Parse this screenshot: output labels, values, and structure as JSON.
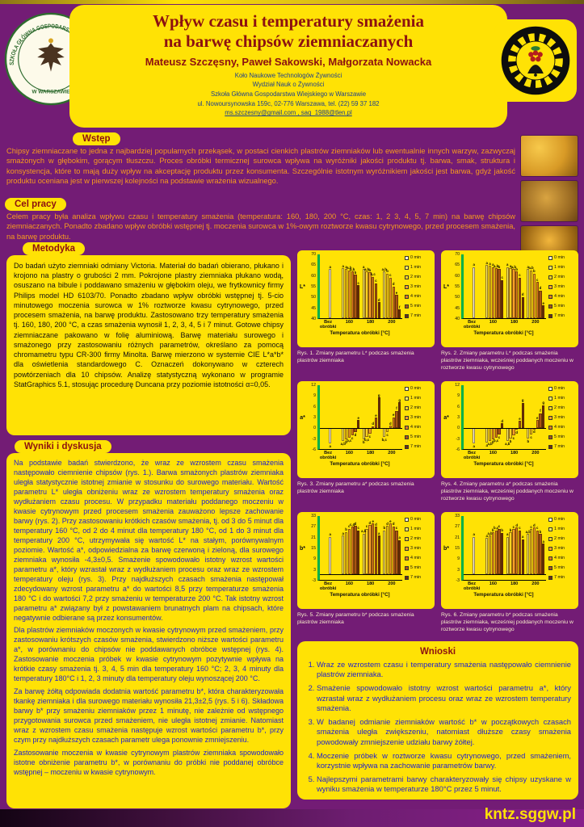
{
  "palette": {
    "background_purple": "#731c75",
    "panel_yellow": "#ffe205",
    "heading_dark_red": "#8c1111",
    "intro_text_orange": "#f79b1e",
    "results_text_blue": "#2222cc",
    "affiliation_blue": "#1c3f8f",
    "axis_green": "#00b14a"
  },
  "header": {
    "title_line1": "Wpływ czasu i temperatury smażenia",
    "title_line2": "na barwę chipsów ziemniaczanych",
    "authors": "Mateusz Szczęsny, Paweł Sakowski, Małgorzata Nowacka",
    "affiliation_lines": [
      "Koło Naukowe Technologów Żywności",
      "Wydział Nauk o Żywności",
      "Szkoła Główna Gospodarstwa Wiejskiego w Warszawie",
      "ul. Nowoursynowska 159c, 02-776 Warszawa,  tel. (22) 59 37 182"
    ],
    "emails": "ms.szczesny@gmail.com , saq_1988@tlen.pl",
    "seal_ring_text": "SZKOŁA GŁÓWNA GOSPODARSTWA WIEJSKIEGO",
    "seal_bottom_text": "W WARSZAWIE"
  },
  "sections": {
    "wstep": {
      "heading": "Wstęp",
      "body": "Chipsy ziemniaczane to jedna z najbardziej popularnych przekąsek, w postaci cienkich plastrów ziemniaków lub ewentualnie innych warzyw, zazwyczaj smażonych w głębokim, gorącym tłuszczu. Proces obróbki termicznej surowca wpływa na wyróżniki jakości produktu tj. barwa, smak, struktura i konsystencja, które to mają duży wpływ na akceptację produktu przez konsumenta. Szczególnie istotnym wyróżnikiem jakości jest barwa, gdyż jakość produktu oceniana jest w pierwszej kolejności na podstawie wrażenia wizualnego."
    },
    "cel": {
      "heading": "Cel pracy",
      "body": "Celem pracy była analiza wpływu czasu i temperatury smażenia (temperatura: 160, 180, 200 °C, czas: 1, 2 3, 4, 5, 7 min) na barwę chipsów ziemniaczanych. Ponadto zbadano wpływ obróbki wstępnej tj. moczenia surowca w 1%-owym roztworze kwasu cytrynowego, przed procesem smażenia, na barwę produktu."
    },
    "metodyka": {
      "heading": "Metodyka",
      "body": "Do badań użyto ziemniaki odmiany Victoria. Materiał do badań obierano, płukano i krojono na plastry o grubości 2 mm. Pokrojone plastry ziemniaka płukano wodą, osuszano na bibule i poddawano smażeniu w głębokim oleju, we frytkownicy firmy Philips model HD 6103/70. Ponadto zbadano wpływ obróbki wstępnej tj. 5-cio minutowego moczenia surowca w 1% roztworze kwasu cytrynowego, przed procesem smażenia, na barwę produktu. Zastosowano trzy temperatury smażenia tj. 160, 180, 200 °C, a czas smażenia wynosił 1, 2, 3, 4, 5 i 7 minut. Gotowe chipsy ziemniaczane pakowano w folię aluminiową. Barwę materiału surowego i smażonego przy zastosowaniu różnych parametrów, określano za pomocą chromametru typu CR-300 firmy Minolta. Barwę mierzono w systemie CIE L*a*b* dla oświetlenia standardowego C. Oznaczeń dokonywano w czterech powtórzeniach dla 10 chipsów. Analizę statystyczną wykonano w programie StatGraphics 5.1, stosując procedurę Duncana przy poziomie istotności α=0,05."
    },
    "wyniki": {
      "heading": "Wyniki i dyskusja",
      "paragraphs": [
        "Na podstawie badań stwierdzono, że wraz ze wzrostem czasu smażenia następowało ciemnienie chipsów (rys. 1.). Barwa smażonych plastrów ziemniaka uległa statystycznie istotnej zmianie w stosunku do surowego materiału. Wartość parametru L* uległa obniżeniu wraz ze wzrostem temperatury smażenia oraz wydłużaniem czasu procesu. W przypadku materiału poddanego moczeniu w kwasie cytrynowym przed procesem smażenia zauważono lepsze zachowanie barwy (rys. 2). Przy zastosowaniu krótkich czasów smażenia, tj. od 3 do 5 minut dla temperatury 160 °C, od 2 do 4 minut dla temperatury 180 °C, od 1 do 3 minut dla temperatury 200 °C, utrzymywała się wartość L* na stałym, porównywalnym poziomie. Wartość a*, odpowiedzialna za barwę czerwoną i zieloną, dla surowego ziemniaka wynosiła -4,3±0,5. Smażenie spowodowało istotny wzrost wartości parametru a*, który wzrastał wraz z wydłużaniem procesu oraz wraz ze wzrostem temperatury oleju (rys. 3). Przy najdłuższych czasach smażenia następował zdecydowany wzrost parametru a* do wartości 8,5 przy temperaturze smażenia 180 °C i do wartości 7,2 przy smażeniu w temperaturze 200 °C. Tak istotny wzrost parametru a* związany był z powstawaniem brunatnych plam na chipsach, które negatywnie odbierane są przez konsumentów.",
        "Dla plastrów ziemniaków moczonych w kwasie cytrynowym przed smażeniem, przy zastosowaniu krótszych czasów smażenia, stwierdzono niższe wartości parametru a*, w porównaniu do chipsów nie poddawanych obróbce wstępnej (rys. 4). Zastosowanie moczenia próbek w kwasie cytrynowym pozytywnie wpływa na krótkie czasy smażenia tj. 3, 4, 5 min dla temperatury 160 °C; 2, 3, 4 minuty dla temperatury 180°C i 1, 2, 3 minuty dla temperatury oleju wynoszącej 200 °C.",
        "Za barwę żółtą odpowiada dodatnia wartość parametru b*, która charakteryzowała tkankę ziemniaka i dla surowego materiału wynosiła 21,3±2,5 (rys. 5 i 6). Składowa barwy b* przy smażeniu ziemniaków przez 1 minutę, nie zależnie od wstępnego przygotowania surowca przed smażeniem, nie uległa istotnej zmianie. Natomiast wraz z wzrostem czasu smażenia następuje wzrost wartości parametru b*, przy czym przy najdłuższych czasach parametr ulega ponownie zmniejszeniu.",
        "Zastosowanie moczenia w kwasie cytrynowym plastrów ziemniaka spowodowało istotne obniżenie parametru b*, w porównaniu do próbki nie poddanej obróbce wstępnej – moczeniu w kwasie cytrynowym."
      ]
    },
    "wnioski": {
      "heading": "Wnioski",
      "items": [
        "Wraz ze wzrostem czasu i temperatury smażenia następowało ciemnienie plastrów ziemniaka.",
        "Smażenie spowodowało istotny wzrost wartości parametru a*, który wzrastał wraz z wydłużaniem procesu oraz wraz ze wzrostem temperatury smażenia.",
        "W badanej odmianie ziemniaków wartość b* w początkowych czasach smażenia uległa zwiększeniu, natomiast dłuższe czasy smażenia powodowały zmniejszenie udziału barwy żółtej.",
        "Moczenie próbek w roztworze kwasu cytrynowego, przed smażeniem, korzystnie wpływa na zachowanie parametrów barwy.",
        "Najlepszymi parametrami barwy charakteryzowały się chipsy uzyskane w wyniku smażenia w temperaturze 180°C przez 5 minut."
      ]
    }
  },
  "footer": {
    "site": "kntz.sggw.pl"
  },
  "chart_common": {
    "raw_label": "Bez obróbki",
    "legend": [
      "0 min",
      "1 min",
      "2 min",
      "3 min",
      "4 min",
      "5 min",
      "7 min"
    ],
    "colors": [
      "#fffdd8",
      "#fff066",
      "#ffd321",
      "#f7a128",
      "#dd7d1f",
      "#a85513",
      "#6f3008"
    ]
  },
  "chart_data": [
    {
      "type": "bar",
      "caption": "Rys. 1. Zmiany parametru L* podczas smażenia plastrów ziemniaka",
      "ylabel": "L*",
      "xlabel": "Temperatura obróbki [°C]",
      "ylim": [
        40,
        70
      ],
      "yticks": [
        40,
        45,
        50,
        55,
        60,
        65,
        70
      ],
      "raw": {
        "value": 63,
        "letter": "a"
      },
      "groups": [
        {
          "label": "160",
          "values": [
            63.5,
            63,
            62.5,
            62,
            60.5,
            55.5
          ],
          "letters": [
            "a",
            "a",
            "a,b",
            "a,b",
            "b",
            "c"
          ]
        },
        {
          "label": "180",
          "values": [
            63,
            62,
            61.5,
            59.5,
            56.5,
            47.5
          ],
          "letters": [
            "a",
            "a,b",
            "b",
            "b,c",
            "c",
            "d"
          ]
        },
        {
          "label": "200",
          "values": [
            62,
            61,
            59,
            55,
            51,
            44
          ],
          "letters": [
            "a,b",
            "b",
            "c",
            "d",
            "e",
            "f"
          ]
        }
      ]
    },
    {
      "type": "bar",
      "caption": "Rys. 2. Zmiany parametru L* podczas smażenia plastrów ziemniaka, wcześniej poddanych moczeniu w roztworze kwasu cytrynowego",
      "ylabel": "L*",
      "xlabel": "Temperatura obróbki [°C]",
      "ylim": [
        40,
        70
      ],
      "yticks": [
        40,
        45,
        50,
        55,
        60,
        65,
        70
      ],
      "raw": {
        "value": 64,
        "letter": "a"
      },
      "groups": [
        {
          "label": "160",
          "values": [
            65,
            64.5,
            64,
            63.5,
            63,
            58
          ],
          "letters": [
            "a",
            "a",
            "a",
            "a,b",
            "b",
            "c"
          ]
        },
        {
          "label": "180",
          "values": [
            64,
            63.5,
            63,
            62,
            59,
            50
          ],
          "letters": [
            "a",
            "a",
            "a,b",
            "b",
            "c",
            "d"
          ]
        },
        {
          "label": "200",
          "values": [
            63,
            62.5,
            61,
            57,
            53,
            46
          ],
          "letters": [
            "a",
            "a,b",
            "b",
            "c",
            "d",
            "e"
          ]
        }
      ]
    },
    {
      "type": "bar",
      "caption": "Rys. 3. Zmiany parametru a* podczas smażenia plastrów ziemniaka",
      "ylabel": "a*",
      "xlabel": "Temperatura obróbki [°C]",
      "ylim": [
        -6,
        12
      ],
      "yticks": [
        -6,
        -3,
        0,
        3,
        6,
        9,
        12
      ],
      "raw": {
        "value": -4.3,
        "letter": "a"
      },
      "groups": [
        {
          "label": "160",
          "values": [
            -3.8,
            -3.2,
            -2.8,
            -2.2,
            -1.2,
            2.1
          ],
          "letters": [
            "a,b",
            "b",
            "b,c",
            "c",
            "d",
            "e"
          ]
        },
        {
          "label": "180",
          "values": [
            -3.2,
            -2.6,
            -1.6,
            0.4,
            2.8,
            8.5
          ],
          "letters": [
            "b",
            "b,c",
            "c",
            "d",
            "e",
            "g"
          ]
        },
        {
          "label": "200",
          "values": [
            -2.6,
            -1.2,
            0.6,
            2.9,
            4.8,
            7.2
          ],
          "letters": [
            "b,c",
            "c",
            "d",
            "e",
            "f",
            "g"
          ]
        }
      ]
    },
    {
      "type": "bar",
      "caption": "Rys. 4. Zmiany parametru a* podczas smażenia plastrów ziemniaka, wcześniej poddanych moczeniu w roztworze kwasu cytrynowego",
      "ylabel": "a*",
      "xlabel": "Temperatura obróbki [°C]",
      "ylim": [
        -6,
        12
      ],
      "yticks": [
        -6,
        -3,
        0,
        3,
        6,
        9,
        12
      ],
      "raw": {
        "value": -4.3,
        "letter": "a"
      },
      "groups": [
        {
          "label": "160",
          "values": [
            -4.1,
            -3.7,
            -3.3,
            -2.8,
            -1.9,
            1.2
          ],
          "letters": [
            "a",
            "a,b",
            "b",
            "b,c",
            "c",
            "d"
          ]
        },
        {
          "label": "180",
          "values": [
            -3.7,
            -3.1,
            -2.2,
            -0.6,
            1.9,
            7
          ],
          "letters": [
            "a,b",
            "b",
            "c",
            "d",
            "e",
            "g"
          ]
        },
        {
          "label": "200",
          "values": [
            -3,
            -1.8,
            -0.2,
            2.2,
            4.1,
            6.4
          ],
          "letters": [
            "b",
            "c",
            "d",
            "e",
            "f",
            "g"
          ]
        }
      ]
    },
    {
      "type": "bar",
      "caption": "Rys. 5. Zmiany parametru b* podczas smażenia plastrów ziemniaka",
      "ylabel": "b*",
      "xlabel": "Temperatura obróbki [°C]",
      "ylim": [
        -3,
        33
      ],
      "yticks": [
        -3,
        3,
        9,
        15,
        21,
        27,
        33
      ],
      "raw": {
        "value": 21.3,
        "letter": "a"
      },
      "groups": [
        {
          "label": "160",
          "values": [
            22,
            24,
            25.8,
            27,
            27.5,
            25
          ],
          "letters": [
            "a",
            "b",
            "c",
            "c,d",
            "d",
            "c"
          ]
        },
        {
          "label": "180",
          "values": [
            23,
            25.8,
            27.8,
            28.8,
            27,
            22
          ],
          "letters": [
            "a,b",
            "c",
            "d",
            "e",
            "d",
            "a"
          ]
        },
        {
          "label": "200",
          "values": [
            24.8,
            27.5,
            28.8,
            27.2,
            25,
            19.5
          ],
          "letters": [
            "b",
            "d",
            "e",
            "d",
            "c",
            "a"
          ]
        }
      ]
    },
    {
      "type": "bar",
      "caption": "Rys. 6. Zmiany parametru b* podczas smażenia plastrów ziemniaka, wcześniej poddanych moczeniu w roztworze kwasu cytrynowego",
      "ylabel": "b*",
      "xlabel": "Temperatura obróbki [°C]",
      "ylim": [
        -3,
        33
      ],
      "yticks": [
        -3,
        3,
        9,
        15,
        21,
        27,
        33
      ],
      "raw": {
        "value": 21.3,
        "letter": "a"
      },
      "groups": [
        {
          "label": "160",
          "values": [
            20.5,
            22,
            23.8,
            25,
            25.8,
            23.5
          ],
          "letters": [
            "a",
            "a,b",
            "b",
            "b,c",
            "c",
            "b"
          ]
        },
        {
          "label": "180",
          "values": [
            21.2,
            23.8,
            25.6,
            26.6,
            24.8,
            19.8
          ],
          "letters": [
            "a",
            "b",
            "c",
            "d",
            "c",
            "a"
          ]
        },
        {
          "label": "200",
          "values": [
            22.8,
            25.5,
            26.6,
            25,
            22.8,
            17.5
          ],
          "letters": [
            "a,b",
            "c",
            "d",
            "c",
            "b",
            "a"
          ]
        }
      ]
    }
  ]
}
